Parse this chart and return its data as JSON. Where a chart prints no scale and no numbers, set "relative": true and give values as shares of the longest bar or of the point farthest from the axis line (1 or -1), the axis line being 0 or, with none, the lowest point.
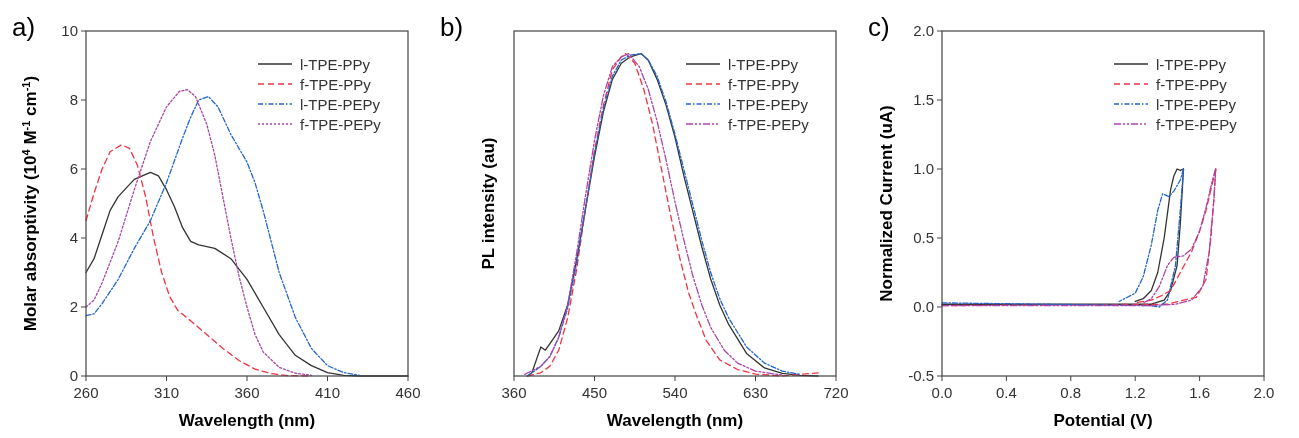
{
  "chart_data": [
    {
      "type": "line",
      "title": "a)",
      "xlabel": "Wavelength (nm)",
      "ylabel": "Molar absorptivity (10$^{4}$ M$^{-1}$ cm$^{-1}$)",
      "xlim": [
        260,
        460
      ],
      "xticks": [
        260,
        310,
        360,
        410,
        460
      ],
      "ylim": [
        0,
        10
      ],
      "yticks": [
        0,
        2,
        4,
        6,
        8,
        10
      ],
      "legend": "top right",
      "grid": false,
      "series": [
        {
          "name": "l-TPE-PPy",
          "color": "#333333",
          "line_style": "solid",
          "x": [
            260,
            265,
            270,
            275,
            280,
            290,
            300,
            305,
            310,
            315,
            320,
            325,
            330,
            340,
            350,
            355,
            360,
            370,
            380,
            390,
            400,
            410,
            420,
            430,
            460
          ],
          "values": [
            3.0,
            3.4,
            4.1,
            4.8,
            5.2,
            5.7,
            5.9,
            5.8,
            5.4,
            4.9,
            4.3,
            3.9,
            3.8,
            3.7,
            3.4,
            3.1,
            2.8,
            2.0,
            1.2,
            0.6,
            0.3,
            0.1,
            0.02,
            0,
            0
          ]
        },
        {
          "name": "f-TPE-PPy",
          "color": "#ee3344",
          "line_style": "dashed",
          "x": [
            260,
            265,
            270,
            275,
            282,
            287,
            292,
            297,
            302,
            307,
            312,
            317,
            325,
            335,
            345,
            355,
            365,
            375,
            385,
            400
          ],
          "values": [
            4.5,
            5.3,
            6.0,
            6.5,
            6.7,
            6.6,
            6.1,
            5.2,
            4.0,
            3.0,
            2.3,
            1.9,
            1.6,
            1.2,
            0.8,
            0.45,
            0.2,
            0.07,
            0.01,
            0
          ]
        },
        {
          "name": "l-TPE-PEPy",
          "color": "#2266cc",
          "line_style": "dashdot",
          "x": [
            260,
            265,
            270,
            280,
            290,
            300,
            310,
            320,
            325,
            330,
            336,
            342,
            350,
            355,
            360,
            365,
            370,
            375,
            380,
            390,
            400,
            410,
            420,
            430
          ],
          "values": [
            1.75,
            1.8,
            2.1,
            2.8,
            3.7,
            4.5,
            5.6,
            6.9,
            7.5,
            8.0,
            8.1,
            7.8,
            7.0,
            6.6,
            6.2,
            5.6,
            4.8,
            3.9,
            3.0,
            1.7,
            0.8,
            0.3,
            0.1,
            0.02
          ]
        },
        {
          "name": "f-TPE-PEPy",
          "color": "#aa44aa",
          "line_style": "dotted",
          "x": [
            260,
            265,
            270,
            280,
            290,
            300,
            310,
            318,
            323,
            328,
            335,
            340,
            345,
            350,
            355,
            360,
            365,
            370,
            380,
            390,
            400
          ],
          "values": [
            2.0,
            2.2,
            2.7,
            3.9,
            5.4,
            6.8,
            7.8,
            8.25,
            8.3,
            8.1,
            7.3,
            6.4,
            5.2,
            4.0,
            2.9,
            2.0,
            1.2,
            0.7,
            0.25,
            0.08,
            0.02
          ]
        }
      ]
    },
    {
      "type": "line",
      "title": "b)",
      "xlabel": "Wavelength (nm)",
      "ylabel": "PL intensity (au)",
      "relative": true,
      "xlim": [
        360,
        720
      ],
      "xticks": [
        360,
        450,
        540,
        630,
        720
      ],
      "legend": "top right",
      "grid": false,
      "series": [
        {
          "name": "l-TPE-PPy",
          "color": "#333333",
          "line_style": "solid",
          "x": [
            375,
            380,
            385,
            390,
            395,
            400,
            410,
            420,
            430,
            440,
            450,
            460,
            470,
            480,
            490,
            502,
            510,
            520,
            530,
            540,
            550,
            560,
            570,
            580,
            590,
            600,
            620,
            640,
            660,
            680,
            700
          ],
          "values": [
            0,
            0.01,
            0.05,
            0.09,
            0.08,
            0.1,
            0.14,
            0.22,
            0.36,
            0.52,
            0.68,
            0.82,
            0.92,
            0.97,
            0.99,
            1.0,
            0.98,
            0.92,
            0.84,
            0.74,
            0.62,
            0.51,
            0.4,
            0.3,
            0.22,
            0.16,
            0.07,
            0.025,
            0.008,
            0.002,
            0
          ]
        },
        {
          "name": "f-TPE-PPy",
          "color": "#ee3344",
          "line_style": "dashed",
          "x": [
            375,
            390,
            400,
            410,
            420,
            430,
            440,
            450,
            460,
            470,
            480,
            485,
            495,
            505,
            515,
            525,
            535,
            545,
            555,
            565,
            575,
            590,
            610,
            630,
            660,
            700
          ],
          "values": [
            0,
            0.01,
            0.03,
            0.08,
            0.18,
            0.33,
            0.52,
            0.7,
            0.84,
            0.95,
            0.99,
            1.0,
            0.97,
            0.89,
            0.78,
            0.64,
            0.5,
            0.37,
            0.26,
            0.18,
            0.11,
            0.05,
            0.02,
            0.006,
            0,
            0.01
          ]
        },
        {
          "name": "l-TPE-PEPy",
          "color": "#2266cc",
          "line_style": "dashdot",
          "x": [
            375,
            390,
            400,
            410,
            420,
            430,
            440,
            450,
            460,
            470,
            480,
            490,
            502,
            510,
            520,
            530,
            540,
            550,
            560,
            570,
            580,
            590,
            600,
            620,
            640,
            660,
            680
          ],
          "values": [
            0,
            0.03,
            0.06,
            0.12,
            0.21,
            0.35,
            0.52,
            0.69,
            0.83,
            0.93,
            0.98,
            0.995,
            1.0,
            0.98,
            0.93,
            0.85,
            0.75,
            0.64,
            0.53,
            0.42,
            0.32,
            0.24,
            0.18,
            0.09,
            0.04,
            0.015,
            0.005
          ]
        },
        {
          "name": "f-TPE-PEPy",
          "color": "#aa44aa",
          "line_style": "dashdotdot",
          "x": [
            372,
            390,
            400,
            410,
            420,
            430,
            440,
            450,
            460,
            470,
            480,
            488,
            500,
            510,
            520,
            530,
            540,
            550,
            560,
            570,
            580,
            595,
            610,
            630,
            660
          ],
          "values": [
            0.005,
            0.03,
            0.06,
            0.12,
            0.22,
            0.38,
            0.56,
            0.73,
            0.87,
            0.96,
            0.99,
            1.0,
            0.96,
            0.89,
            0.79,
            0.67,
            0.54,
            0.42,
            0.31,
            0.22,
            0.15,
            0.08,
            0.04,
            0.015,
            0.003
          ]
        }
      ]
    },
    {
      "type": "line",
      "title": "c)",
      "xlabel": "Potential (V)",
      "ylabel": "Normalized Current (uA)",
      "xlim": [
        0,
        2
      ],
      "xticks": [
        {
          "value": 0,
          "label": "0.0"
        },
        0.4,
        0.8,
        1.2,
        1.6,
        {
          "value": 2,
          "label": "2.0"
        }
      ],
      "ylim": [
        -0.5,
        2
      ],
      "yticks": [
        -0.5,
        {
          "value": 0,
          "label": "0.0"
        },
        0.5,
        {
          "value": 1,
          "label": "1.0"
        },
        1.5,
        {
          "value": 2,
          "label": "2.0"
        }
      ],
      "legend": "top right",
      "grid": false,
      "series": [
        {
          "name": "l-TPE-PPy",
          "color": "#333333",
          "line_style": "solid",
          "x": [
            0,
            1.3,
            1.38,
            1.42,
            1.46,
            1.48,
            1.5
          ],
          "values": [
            0.02,
            0.02,
            0.05,
            0.12,
            0.3,
            0.6,
            1.0
          ]
        },
        {
          "name": "f-TPE-PPy",
          "color": "#ee3344",
          "line_style": "dashed",
          "x": [
            0,
            1.4,
            1.5,
            1.58,
            1.64,
            1.67,
            1.69,
            1.7
          ],
          "values": [
            0.01,
            0.02,
            0.05,
            0.07,
            0.2,
            0.5,
            0.8,
            1.0
          ]
        },
        {
          "name": "l-TPE-PEPy",
          "color": "#2266cc",
          "line_style": "dashdot",
          "x": [
            0,
            1.3,
            1.35,
            1.4,
            1.45,
            1.48,
            1.5
          ],
          "values": [
            0.03,
            0.01,
            0,
            0.05,
            0.3,
            0.7,
            1.0
          ]
        },
        {
          "name": "f-TPE-PEPy",
          "color": "#aa44aa",
          "line_style": "dashdotdot",
          "x": [
            0,
            1.3,
            1.45,
            1.55,
            1.62,
            1.66,
            1.69,
            1.7
          ],
          "values": [
            0.01,
            0.01,
            0.02,
            0.05,
            0.15,
            0.4,
            0.8,
            1.0
          ]
        },
        {
          "color": "#333333",
          "line_style": "solid",
          "x": [
            1.5,
            1.48,
            1.46,
            1.44,
            1.42,
            1.38,
            1.34,
            1.3,
            1.25,
            1.2
          ],
          "values": [
            1.0,
            0.99,
            1.0,
            0.95,
            0.85,
            0.5,
            0.25,
            0.12,
            0.06,
            0.04
          ]
        },
        {
          "color": "#ee3344",
          "line_style": "dashed",
          "x": [
            1.7,
            1.68,
            1.64,
            1.6,
            1.55,
            1.48,
            1.42,
            1.36,
            1.3,
            1.2
          ],
          "values": [
            1.0,
            0.9,
            0.7,
            0.55,
            0.4,
            0.25,
            0.12,
            0.08,
            0.05,
            0.03
          ]
        },
        {
          "color": "#2266cc",
          "line_style": "dashdot",
          "x": [
            1.5,
            1.48,
            1.44,
            1.41,
            1.39,
            1.37,
            1.34,
            1.3,
            1.25,
            1.2,
            1.1
          ],
          "values": [
            1.0,
            0.92,
            0.84,
            0.8,
            0.81,
            0.82,
            0.7,
            0.45,
            0.22,
            0.1,
            0.04
          ]
        },
        {
          "color": "#aa44aa",
          "line_style": "dashdotdot",
          "x": [
            1.7,
            1.68,
            1.64,
            1.6,
            1.55,
            1.5,
            1.44,
            1.4,
            1.35,
            1.3,
            1.25
          ],
          "values": [
            1.0,
            0.92,
            0.72,
            0.55,
            0.42,
            0.37,
            0.36,
            0.3,
            0.15,
            0.06,
            0.03
          ]
        }
      ]
    }
  ]
}
